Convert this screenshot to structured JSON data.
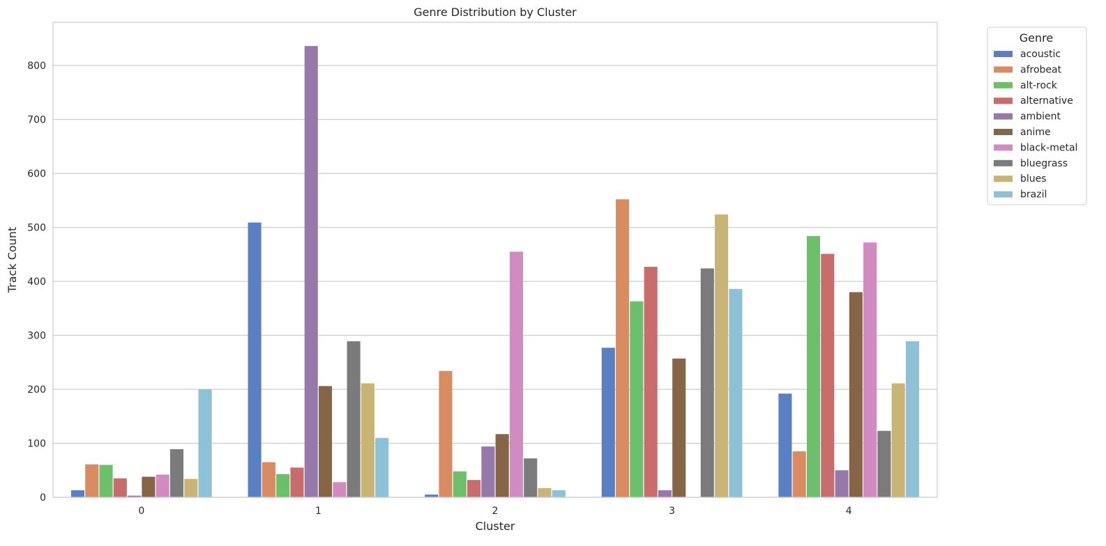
{
  "chart_data": {
    "type": "bar",
    "title": "Genre Distribution by Cluster",
    "xlabel": "Cluster",
    "ylabel": "Track Count",
    "categories": [
      "0",
      "1",
      "2",
      "3",
      "4"
    ],
    "ylim": [
      0,
      880
    ],
    "yticks": [
      0,
      100,
      200,
      300,
      400,
      500,
      600,
      700,
      800
    ],
    "grid": "y",
    "legend": {
      "title": "Genre",
      "placement": "outside-top-right"
    },
    "series": [
      {
        "name": "acoustic",
        "color": "#5a7fc2",
        "values": [
          13,
          509,
          5,
          277,
          192
        ]
      },
      {
        "name": "afrobeat",
        "color": "#d98b61",
        "values": [
          61,
          65,
          234,
          552,
          85
        ]
      },
      {
        "name": "alt-rock",
        "color": "#6dbf6b",
        "values": [
          60,
          43,
          48,
          363,
          484
        ]
      },
      {
        "name": "alternative",
        "color": "#c96c6c",
        "values": [
          35,
          55,
          32,
          427,
          451
        ]
      },
      {
        "name": "ambient",
        "color": "#9678aa",
        "values": [
          3,
          836,
          94,
          13,
          50
        ]
      },
      {
        "name": "anime",
        "color": "#866446",
        "values": [
          38,
          206,
          117,
          257,
          380
        ]
      },
      {
        "name": "black-metal",
        "color": "#d08bc0",
        "values": [
          42,
          28,
          455,
          0,
          472
        ]
      },
      {
        "name": "bluegrass",
        "color": "#7b7b7b",
        "values": [
          89,
          289,
          72,
          424,
          123
        ]
      },
      {
        "name": "blues",
        "color": "#c9b476",
        "values": [
          34,
          211,
          17,
          524,
          211
        ]
      },
      {
        "name": "brazil",
        "color": "#8dc1d7",
        "values": [
          200,
          110,
          13,
          386,
          289
        ]
      }
    ]
  }
}
